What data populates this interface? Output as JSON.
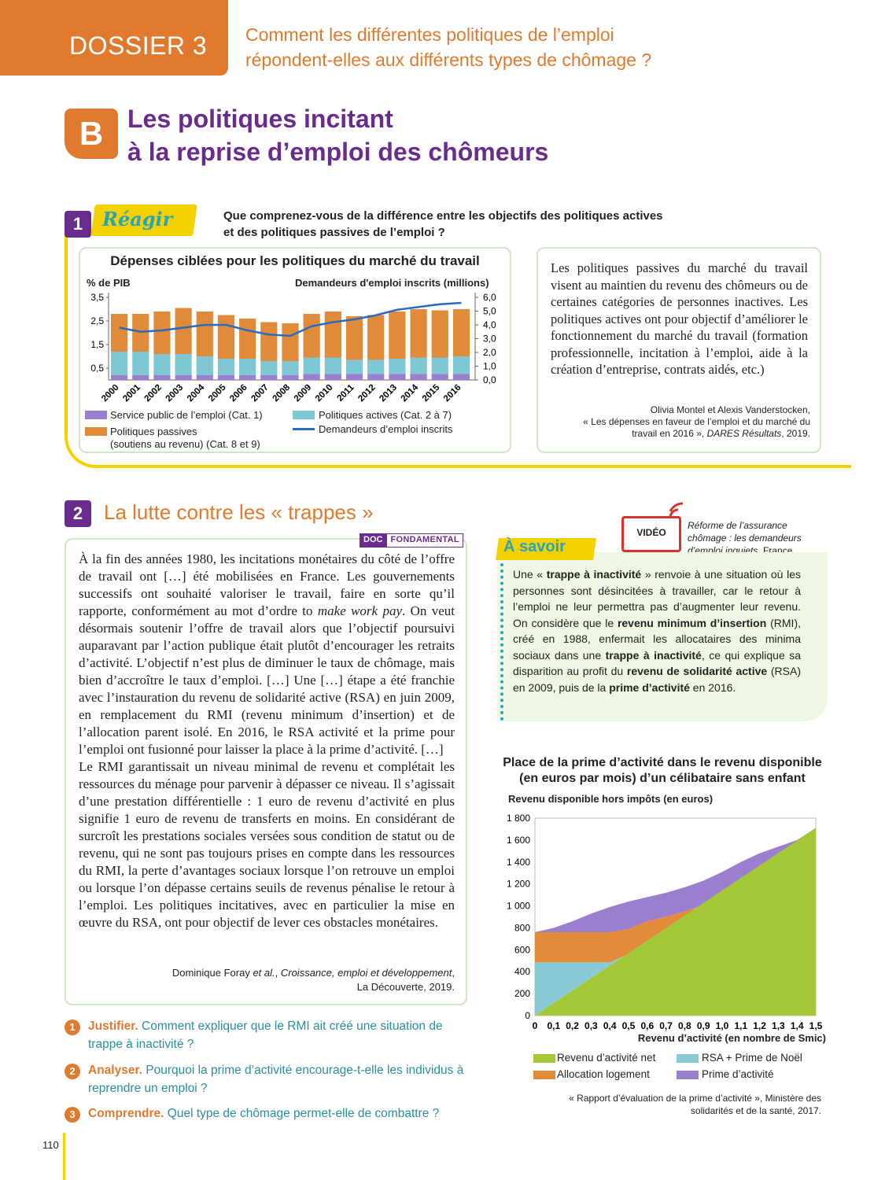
{
  "header": {
    "dossier": "DOSSIER 3",
    "question_line1": "Comment les différentes politiques de l’emploi",
    "question_line2": "répondent-elles aux différents types de chômage ?"
  },
  "section": {
    "letter": "B",
    "title_line1": "Les politiques incitant",
    "title_line2": "à la reprise d’emploi des chômeurs"
  },
  "doc1": {
    "number": "1",
    "badge": "Réagir",
    "question_line1": "Que comprenez-vous de la différence entre les objectifs des politiques actives",
    "question_line2": "et des politiques passives de l’emploi ?",
    "text": "Les politiques passives du marché du travail visent au maintien du revenu des chômeurs ou de certaines catégories de personnes inactives. Les politiques actives ont pour objectif d’améliorer le fonctionnement du marché du travail (formation professionnelle, incitation à l’emploi, aide à la création d’entreprise, contrats aidés, etc.)",
    "source_line1": "Olivia Montel et Alexis Vanderstocken,",
    "source_line2": "« Les dépenses en faveur de l’emploi et du marché du",
    "source_line3a": "travail en 2016 », ",
    "source_line3b": "DARES Résultats",
    "source_line3c": ", 2019."
  },
  "doc2": {
    "number": "2",
    "title": "La lutte contre les « trappes »",
    "tag1": "DOC",
    "tag2": "FONDAMENTAL",
    "text_p1a": "À la fin des années 1980, les incitations monétaires du côté de l’offre de travail ont […] été mobilisées en France. Les gouvernements successifs ont souhaité valoriser le travail, faire en sorte qu’il rapporte, conformément au mot d’ordre to ",
    "text_p1_em": "make work pay",
    "text_p1b": ". On veut désormais soutenir l’offre de travail alors que l’objectif poursuivi auparavant par l’action publique était plutôt d’encourager les retraits d’activité. L’objectif n’est plus de diminuer le taux de chômage, mais bien d’accroître le taux d’emploi. […] Une […] étape a été franchie avec l’instauration du revenu de solidarité active (RSA) en juin 2009, en remplacement du RMI (revenu minimum d’insertion) et de l’allocation parent isolé. En 2016, le RSA activité et la prime pour l’emploi ont fusionné pour laisser la place à la prime d’activité. […]",
    "text_p2": "Le RMI garantissait un niveau minimal de revenu et complétait les ressources du ménage pour parvenir à dépasser ce niveau. Il s’agissait d’une prestation différentielle : 1 euro de revenu d’activité en plus signifie 1 euro de revenu de transferts en moins. En considérant de surcroît les prestations sociales versées sous condition de statut ou de revenu, qui ne sont pas toujours prises en compte dans les ressources du RMI, la perte d’avantages sociaux lorsque l’on retrouve un emploi ou lorsque l’on dépasse certains seuils de revenus pénalise le retour à l’emploi. Les politiques incitatives, avec en particulier la mise en œuvre du RSA, ont pour objectif de lever ces obstacles monétaires.",
    "source_line1a": "Dominique Foray ",
    "source_line1b": "et al.",
    "source_line1c": ", ",
    "source_line1d": "Croissance, emploi et développement",
    "source_line1e": ",",
    "source_line2": "La Découverte, 2019."
  },
  "questions": [
    {
      "num": "1",
      "verb": "Justifier.",
      "text": " Comment expliquer que le RMI ait créé une situation de trappe à inactivité ?"
    },
    {
      "num": "2",
      "verb": "Analyser.",
      "text": " Pourquoi la prime d’activité encourage-t-elle les individus à reprendre un emploi ?"
    },
    {
      "num": "3",
      "verb": "Comprendre.",
      "text": " Quel type de chômage permet-elle de combattre ?"
    }
  ],
  "savoir": {
    "title": "À savoir",
    "t1": "Une « ",
    "b1": "trappe à inactivité",
    "t2": " » renvoie à une situation où les personnes sont désincitées à travailler, car le retour à l’emploi ne leur permettra pas d’augmenter leur revenu. On considère que le ",
    "b2": "revenu minimum d’insertion",
    "t3": " (RMI), créé en 1988, enfermait les allocataires des minima sociaux dans une ",
    "b3": "trappe à inactivité",
    "t4": ", ce qui explique sa disparition au profit du ",
    "b4": "revenu de solidarité active",
    "t5": " (RSA) en 2009, puis de la ",
    "b5": "prime d’activité",
    "t6": " en 2016."
  },
  "video": {
    "label": "VIDÉO",
    "caption_line1": "Réforme de l’assurance",
    "caption_line2": "chômage : les demandeurs",
    "caption_line3a": "d’emploi inquiets,",
    "caption_line3b": " France Info."
  },
  "page_number": "110",
  "chart_data": [
    {
      "type": "bar",
      "title": "Dépenses ciblées pour les politiques du marché du travail",
      "ylabel_left": "% de PIB",
      "ylabel_right": "Demandeurs d'emploi inscrits (millions)",
      "ylim_left": [
        0,
        3.5
      ],
      "ylim_right": [
        0,
        6.0
      ],
      "yticks_left": [
        "3,5",
        "2,5",
        "1,5",
        "0,5"
      ],
      "yticks_right": [
        "6,0",
        "5,0",
        "4,0",
        "3,0",
        "2,0",
        "1,0",
        "0,0"
      ],
      "stacked": true,
      "categories": [
        "2000",
        "2001",
        "2002",
        "2003",
        "2004",
        "2005",
        "2006",
        "2007",
        "2008",
        "2009",
        "2010",
        "2011",
        "2012",
        "2013",
        "2014",
        "2015",
        "2016"
      ],
      "series": [
        {
          "name": "Service public de l’emploi (Cat. 1)",
          "color": "#9b7fcf",
          "values": [
            0.2,
            0.2,
            0.2,
            0.2,
            0.2,
            0.2,
            0.2,
            0.2,
            0.2,
            0.25,
            0.25,
            0.25,
            0.25,
            0.25,
            0.25,
            0.25,
            0.25
          ]
        },
        {
          "name": "Politiques actives (Cat. 2 à 7)",
          "color": "#7fc8d3",
          "values": [
            1.0,
            1.0,
            0.9,
            0.9,
            0.8,
            0.7,
            0.7,
            0.6,
            0.6,
            0.7,
            0.7,
            0.6,
            0.6,
            0.65,
            0.7,
            0.7,
            0.75
          ]
        },
        {
          "name": "Politiques passives (soutiens au revenu) (Cat. 8 et 9)",
          "color": "#e08a3a",
          "values": [
            1.6,
            1.6,
            1.8,
            1.95,
            1.9,
            1.85,
            1.7,
            1.65,
            1.6,
            1.85,
            1.95,
            1.85,
            1.9,
            2.0,
            2.05,
            2.0,
            2.0
          ]
        },
        {
          "name": "Demandeurs d’emploi inscrits",
          "color": "#2a6bbd",
          "axis": "right",
          "values": [
            3.8,
            3.5,
            3.6,
            3.8,
            4.0,
            4.0,
            3.6,
            3.3,
            3.2,
            3.9,
            4.2,
            4.4,
            4.7,
            5.1,
            5.3,
            5.5,
            5.6
          ]
        }
      ],
      "legend": {
        "sp": "Service public de l’emploi (Cat. 1)",
        "actives": "Politiques actives (Cat. 2 à 7)",
        "passives1": "Politiques passives",
        "passives2": "(soutiens au revenu) (Cat. 8 et 9)",
        "demandeurs": "Demandeurs d’emploi inscrits"
      }
    },
    {
      "type": "area",
      "title_line1": "Place de la prime d’activité dans le revenu disponible",
      "title_line2": "(en euros par mois) d’un célibataire sans enfant",
      "ylabel": "Revenu disponible hors impôts (en euros)",
      "xlabel": "Revenu d’activité (en nombre de Smic)",
      "ylim": [
        0,
        1800
      ],
      "xlim": [
        0,
        1.5
      ],
      "x": [
        0,
        0.1,
        0.2,
        0.3,
        0.4,
        0.5,
        0.6,
        0.7,
        0.8,
        0.9,
        1.0,
        1.1,
        1.2,
        1.3,
        1.4,
        1.5
      ],
      "xticks": [
        "0",
        "0,1",
        "0,2",
        "0,3",
        "0,4",
        "0,5",
        "0,6",
        "0,7",
        "0,8",
        "0,9",
        "1,0",
        "1,1",
        "1,2",
        "1,3",
        "1,4",
        "1,5"
      ],
      "yticks": [
        "0",
        "200",
        "400",
        "600",
        "800",
        "1 000",
        "1 200",
        "1 400",
        "1 600",
        "1 800"
      ],
      "series": [
        {
          "name": "Revenu d’activité net",
          "color": "#a5c838"
        },
        {
          "name": "RSA + Prime de Noël",
          "color": "#8ccbd6"
        },
        {
          "name": "Allocation logement",
          "color": "#e08a3a"
        },
        {
          "name": "Prime d’activité",
          "color": "#9b7fcf"
        }
      ],
      "source_line1": "« Rapport d’évaluation de la prime d’activité », Ministère des",
      "source_line2": "solidarités et de la santé, 2017."
    }
  ]
}
